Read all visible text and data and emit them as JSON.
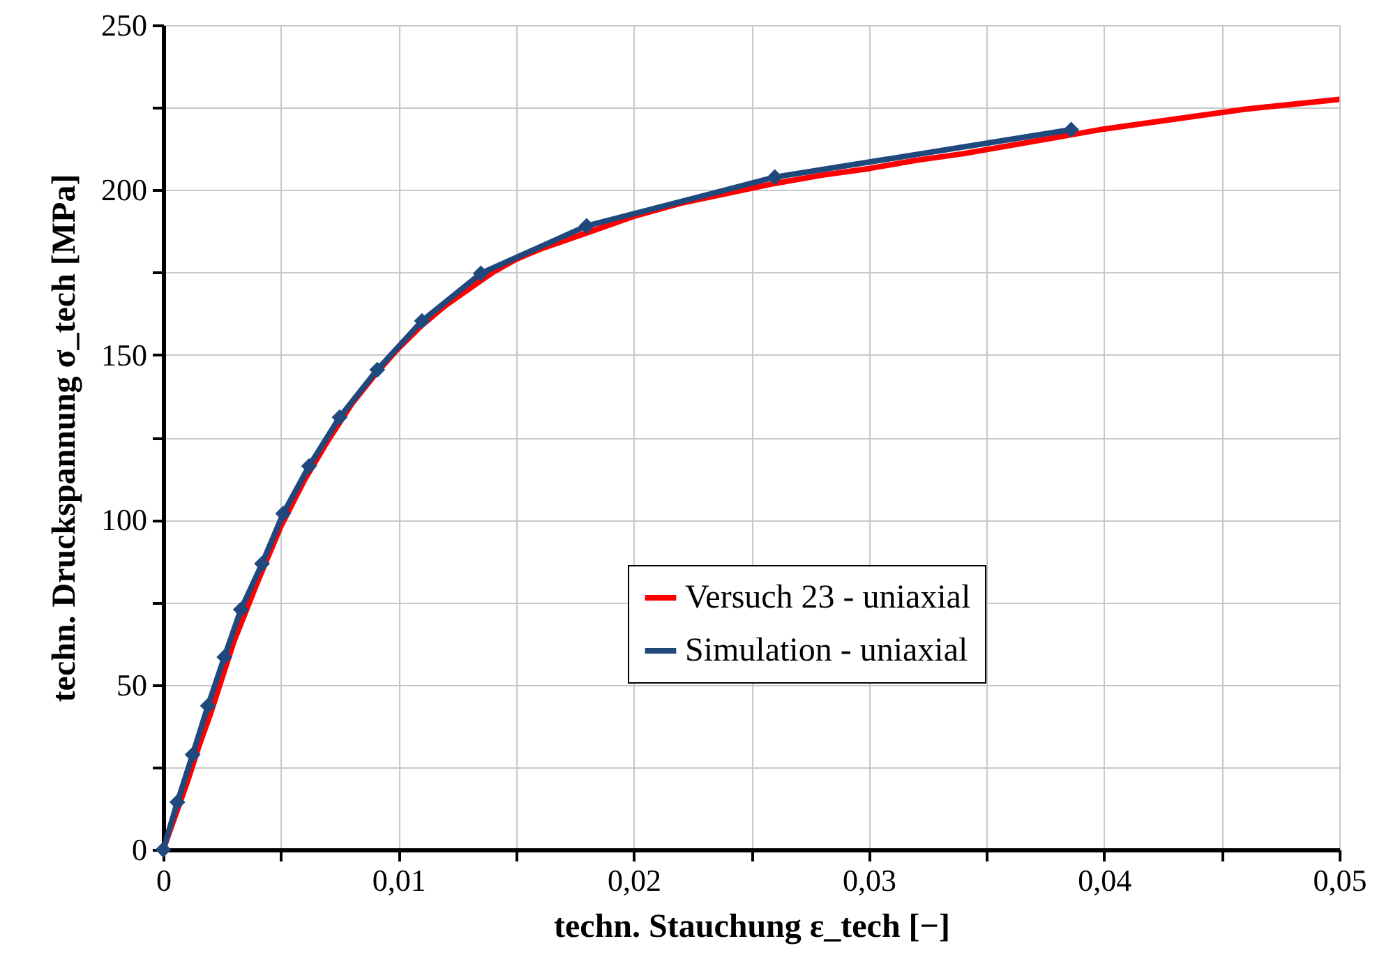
{
  "chart_data": {
    "type": "line",
    "xlabel": "techn. Stauchung ε_tech [−]",
    "ylabel": "techn. Druckspannung σ_tech [MPa]",
    "xlim": [
      0,
      0.05
    ],
    "ylim": [
      0,
      250
    ],
    "xticks": [
      0,
      {
        "value": 0.005,
        "label": null
      },
      {
        "value": 0.01,
        "label": "0,01"
      },
      {
        "value": 0.015,
        "label": null
      },
      {
        "value": 0.02,
        "label": "0,02"
      },
      {
        "value": 0.025,
        "label": null
      },
      {
        "value": 0.03,
        "label": "0,03"
      },
      {
        "value": 0.035,
        "label": null
      },
      {
        "value": 0.04,
        "label": "0,04"
      },
      {
        "value": 0.045,
        "label": null
      },
      {
        "value": 0.05,
        "label": "0,05"
      }
    ],
    "yticks": [
      0,
      {
        "value": 25,
        "label": null
      },
      50,
      {
        "value": 75,
        "label": null
      },
      100,
      {
        "value": 125,
        "label": null
      },
      150,
      {
        "value": 175,
        "label": null
      },
      200,
      {
        "value": 225,
        "label": null
      },
      250
    ],
    "grid": true,
    "legend": "bottom right",
    "series": [
      {
        "name": "Versuch 23 - uniaxial",
        "color": "#ff0000",
        "marker": "none",
        "x": [
          0,
          0.0005,
          0.001,
          0.0015,
          0.002,
          0.003,
          0.004,
          0.005,
          0.006,
          0.007,
          0.008,
          0.009,
          0.01,
          0.011,
          0.012,
          0.013,
          0.014,
          0.015,
          0.016,
          0.018,
          0.02,
          0.022,
          0.024,
          0.026,
          0.028,
          0.03,
          0.032,
          0.034,
          0.036,
          0.038,
          0.04,
          0.042,
          0.044,
          0.046,
          0.048,
          0.05
        ],
        "values": [
          0,
          10,
          20,
          31,
          41,
          63,
          81,
          98,
          112,
          124,
          135,
          144,
          152,
          159,
          165,
          170,
          175,
          179,
          182,
          187,
          192,
          196,
          199,
          202,
          204.5,
          206.5,
          209,
          211,
          213.5,
          216,
          218.5,
          220.5,
          222.5,
          224.5,
          226,
          227.5
        ]
      },
      {
        "name": "Simulation - uniaxial",
        "color": "#1f497d",
        "marker": "diamond",
        "x": [
          0,
          0.0006,
          0.00125,
          0.0019,
          0.0026,
          0.0033,
          0.0042,
          0.0051,
          0.0062,
          0.0075,
          0.0091,
          0.011,
          0.0135,
          0.018,
          0.026,
          0.0386
        ],
        "values": [
          0,
          14.4,
          28.8,
          43.6,
          58.4,
          72.8,
          86.7,
          101.9,
          116.3,
          131.1,
          145.5,
          160.3,
          174.7,
          189.1,
          203.9,
          218.3
        ]
      }
    ]
  }
}
